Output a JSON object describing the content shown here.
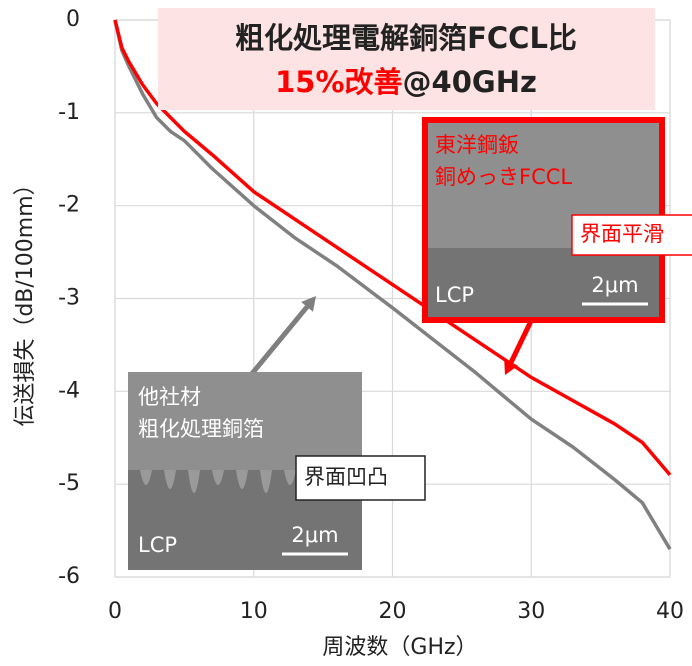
{
  "chart_data": {
    "type": "line",
    "title": "粗化処理電解銅箔FCCL比",
    "subtitle": [
      "15%改善",
      "@40GHz"
    ],
    "subtitle_colors": [
      "#ff0000",
      "#222222"
    ],
    "xlabel": "周波数（GHz）",
    "ylabel": "伝送損失（dB/100mm）",
    "x": [
      0,
      0.5,
      1,
      2,
      3,
      4,
      5,
      7,
      10,
      13,
      16,
      20,
      23,
      26,
      28,
      30,
      33,
      36,
      38,
      40
    ],
    "series": [
      {
        "color": "#808080",
        "values": [
          0,
          -0.33,
          -0.5,
          -0.8,
          -1.05,
          -1.2,
          -1.3,
          -1.6,
          -2.0,
          -2.35,
          -2.65,
          -3.1,
          -3.45,
          -3.8,
          -4.05,
          -4.3,
          -4.6,
          -4.95,
          -5.2,
          -5.7
        ]
      },
      {
        "color": "#ff0000",
        "values": [
          0,
          -0.3,
          -0.45,
          -0.7,
          -0.9,
          -1.05,
          -1.2,
          -1.45,
          -1.85,
          -2.15,
          -2.45,
          -2.85,
          -3.15,
          -3.45,
          -3.65,
          -3.85,
          -4.1,
          -4.35,
          -4.55,
          -4.9
        ]
      }
    ],
    "xlim": [
      0,
      40
    ],
    "xticks": [
      0,
      10,
      20,
      30,
      40
    ],
    "ylim": [
      -6,
      0
    ],
    "yticks": [
      0,
      -1,
      -2,
      -3,
      -4,
      -5,
      -6
    ],
    "grid": true,
    "insets": [
      {
        "lines": [
          "東洋鋼鈑",
          "銅めっきFCCL"
        ],
        "material": "LCP",
        "scale": "2μm",
        "callout": "界面平滑",
        "color": "#ff0000"
      },
      {
        "lines": [
          "他社材",
          "粗化処理銅箔"
        ],
        "material": "LCP",
        "scale": "2μm",
        "callout": "界面凹凸",
        "color": "#222222"
      }
    ]
  }
}
